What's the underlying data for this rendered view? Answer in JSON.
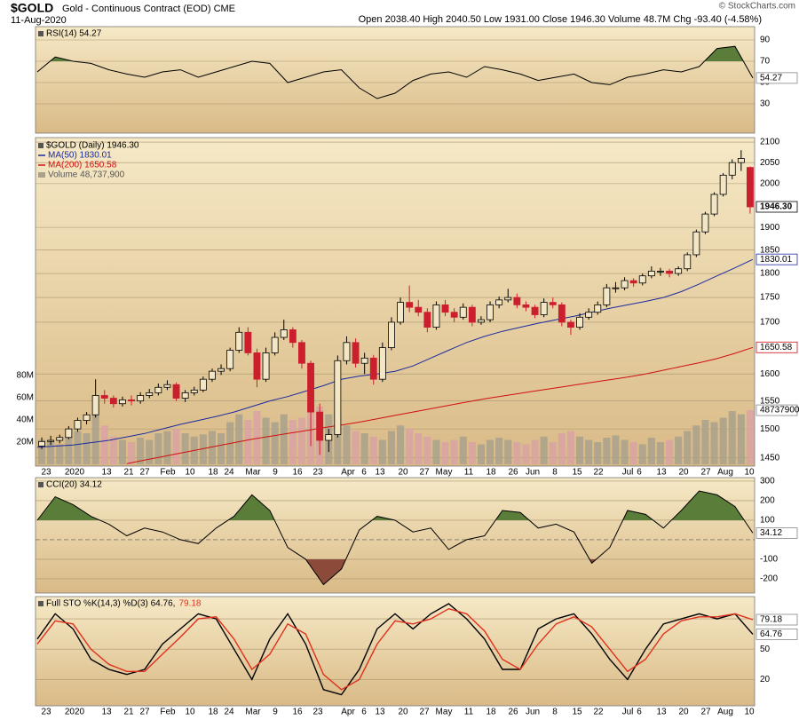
{
  "header": {
    "symbol": "$GOLD",
    "name": "Gold - Continuous Contract (EOD) CME",
    "date": "11-Aug-2020",
    "quote": "Open 2038.40 High 2040.50 Low 1931.00 Close 1946.30 Volume 48.7M Chg -93.40 (-4.58%)",
    "credit": "© StockCharts.com"
  },
  "xlabels": [
    "23",
    "2020",
    "13",
    "21",
    "27",
    "Feb",
    "10",
    "18",
    "24",
    "Mar",
    "9",
    "16",
    "23",
    "Apr",
    "6",
    "13",
    "20",
    "27",
    "May",
    "11",
    "18",
    "26",
    "Jun",
    "8",
    "15",
    "22",
    "Jul",
    "6",
    "13",
    "20",
    "27",
    "Aug",
    "10"
  ],
  "chart_data": [
    {
      "type": "line",
      "ylim": [
        2.5,
        102.5
      ],
      "yticks": [
        90,
        70,
        50,
        30
      ],
      "upper": {
        "value": 70,
        "color": "#5a7d3a"
      },
      "lower": {
        "value": 30,
        "color": "#8b4a3a"
      },
      "series": [
        {
          "name": "RSI(14) 54.27",
          "color": "#000000",
          "last_label": "54.27",
          "values": [
            60,
            74,
            70,
            68,
            62,
            58,
            55,
            60,
            62,
            55,
            60,
            65,
            70,
            68,
            50,
            55,
            60,
            62,
            45,
            35,
            40,
            52,
            58,
            60,
            55,
            65,
            62,
            58,
            52,
            55,
            58,
            50,
            48,
            55,
            58,
            62,
            60,
            65,
            82,
            84,
            54.27
          ]
        }
      ]
    },
    {
      "type": "candlestick",
      "title": "$GOLD (Daily) 1946.30",
      "log": true,
      "ylim": [
        1436,
        2111
      ],
      "yticks": [
        2100,
        2050,
        2000,
        1900,
        1850,
        1800,
        1750,
        1700,
        1600,
        1550,
        1500,
        1450
      ],
      "up_color": "#000000",
      "down_color": "#cc1f2e",
      "last_label": "1946.30",
      "candles": [
        [
          1470,
          1485,
          1465,
          1478
        ],
        [
          1478,
          1488,
          1472,
          1480
        ],
        [
          1480,
          1490,
          1475,
          1485
        ],
        [
          1485,
          1505,
          1482,
          1500
        ],
        [
          1500,
          1520,
          1495,
          1515
        ],
        [
          1515,
          1530,
          1508,
          1525
        ],
        [
          1525,
          1590,
          1520,
          1560
        ],
        [
          1560,
          1570,
          1545,
          1555
        ],
        [
          1555,
          1560,
          1538,
          1545
        ],
        [
          1545,
          1558,
          1540,
          1552
        ],
        [
          1552,
          1560,
          1542,
          1550
        ],
        [
          1550,
          1566,
          1545,
          1560
        ],
        [
          1560,
          1572,
          1555,
          1565
        ],
        [
          1565,
          1582,
          1560,
          1575
        ],
        [
          1575,
          1588,
          1570,
          1580
        ],
        [
          1580,
          1584,
          1550,
          1555
        ],
        [
          1555,
          1570,
          1548,
          1565
        ],
        [
          1565,
          1576,
          1560,
          1570
        ],
        [
          1570,
          1595,
          1566,
          1590
        ],
        [
          1590,
          1610,
          1585,
          1605
        ],
        [
          1605,
          1618,
          1598,
          1610
        ],
        [
          1610,
          1650,
          1605,
          1645
        ],
        [
          1645,
          1690,
          1640,
          1680
        ],
        [
          1680,
          1690,
          1635,
          1640
        ],
        [
          1640,
          1648,
          1575,
          1590
        ],
        [
          1590,
          1650,
          1585,
          1640
        ],
        [
          1640,
          1680,
          1635,
          1670
        ],
        [
          1670,
          1705,
          1665,
          1685
        ],
        [
          1685,
          1690,
          1650,
          1660
        ],
        [
          1660,
          1665,
          1610,
          1620
        ],
        [
          1620,
          1625,
          1470,
          1530
        ],
        [
          1530,
          1545,
          1455,
          1480
        ],
        [
          1480,
          1500,
          1460,
          1490
        ],
        [
          1490,
          1635,
          1485,
          1625
        ],
        [
          1625,
          1672,
          1618,
          1660
        ],
        [
          1660,
          1668,
          1612,
          1620
        ],
        [
          1620,
          1640,
          1600,
          1630
        ],
        [
          1630,
          1636,
          1580,
          1590
        ],
        [
          1590,
          1660,
          1585,
          1650
        ],
        [
          1650,
          1710,
          1645,
          1700
        ],
        [
          1700,
          1750,
          1695,
          1740
        ],
        [
          1740,
          1775,
          1720,
          1730
        ],
        [
          1730,
          1745,
          1712,
          1720
        ],
        [
          1720,
          1728,
          1680,
          1690
        ],
        [
          1690,
          1742,
          1685,
          1735
        ],
        [
          1735,
          1745,
          1712,
          1720
        ],
        [
          1720,
          1728,
          1700,
          1710
        ],
        [
          1710,
          1738,
          1705,
          1730
        ],
        [
          1730,
          1735,
          1692,
          1700
        ],
        [
          1700,
          1712,
          1695,
          1705
        ],
        [
          1705,
          1742,
          1700,
          1735
        ],
        [
          1735,
          1752,
          1728,
          1745
        ],
        [
          1745,
          1768,
          1740,
          1750
        ],
        [
          1750,
          1758,
          1728,
          1735
        ],
        [
          1735,
          1742,
          1722,
          1730
        ],
        [
          1730,
          1735,
          1708,
          1715
        ],
        [
          1715,
          1748,
          1710,
          1740
        ],
        [
          1740,
          1750,
          1728,
          1735
        ],
        [
          1735,
          1740,
          1692,
          1700
        ],
        [
          1700,
          1705,
          1675,
          1690
        ],
        [
          1690,
          1718,
          1685,
          1710
        ],
        [
          1710,
          1728,
          1705,
          1720
        ],
        [
          1720,
          1742,
          1715,
          1735
        ],
        [
          1735,
          1778,
          1730,
          1770
        ],
        [
          1770,
          1782,
          1760,
          1770
        ],
        [
          1770,
          1792,
          1765,
          1785
        ],
        [
          1785,
          1790,
          1772,
          1780
        ],
        [
          1780,
          1800,
          1775,
          1795
        ],
        [
          1795,
          1815,
          1790,
          1805
        ],
        [
          1805,
          1812,
          1795,
          1805
        ],
        [
          1805,
          1810,
          1792,
          1800
        ],
        [
          1800,
          1815,
          1795,
          1810
        ],
        [
          1810,
          1845,
          1805,
          1840
        ],
        [
          1840,
          1895,
          1835,
          1890
        ],
        [
          1890,
          1935,
          1885,
          1930
        ],
        [
          1930,
          1980,
          1925,
          1975
        ],
        [
          1975,
          2025,
          1970,
          2020
        ],
        [
          2020,
          2058,
          2010,
          2050
        ],
        [
          2050,
          2080,
          2030,
          2060
        ],
        [
          2038.4,
          2040.5,
          1931,
          1946.3
        ]
      ],
      "series": [
        {
          "name": "MA(50) 1830.01",
          "color": "#1c2aa0",
          "last_label": "1830.01",
          "values": [
            1468,
            1470,
            1472,
            1476,
            1480,
            1486,
            1492,
            1500,
            1508,
            1515,
            1522,
            1530,
            1540,
            1550,
            1558,
            1568,
            1578,
            1590,
            1596,
            1600,
            1605,
            1615,
            1630,
            1645,
            1660,
            1672,
            1682,
            1690,
            1698,
            1705,
            1712,
            1720,
            1728,
            1735,
            1742,
            1750,
            1762,
            1778,
            1795,
            1812,
            1830.01
          ]
        },
        {
          "name": "MA(200) 1650.58",
          "color": "#d01010",
          "last_label": "1650.58",
          "values": [
            null,
            null,
            null,
            null,
            null,
            1440,
            1446,
            1452,
            1458,
            1464,
            1470,
            1476,
            1482,
            1487,
            1492,
            1497,
            1502,
            1507,
            1512,
            1518,
            1524,
            1530,
            1536,
            1542,
            1548,
            1554,
            1559,
            1564,
            1569,
            1574,
            1579,
            1584,
            1589,
            1594,
            1600,
            1607,
            1614,
            1621,
            1629,
            1639,
            1650.58
          ]
        }
      ],
      "volume": {
        "name": "Volume 48,737,900",
        "up_color": "#a9a18c",
        "down_color": "#d9a3a3",
        "last_label": "48737900",
        "ylim": [
          0,
          100000000
        ],
        "yticks": [
          {
            "value": 80000000,
            "label": "80M"
          },
          {
            "value": 60000000,
            "label": "60M"
          },
          {
            "value": 40000000,
            "label": "40M"
          },
          {
            "value": 20000000,
            "label": "20M"
          }
        ],
        "values": [
          22000000,
          20000000,
          18000000,
          25000000,
          30000000,
          28000000,
          45000000,
          35000000,
          25000000,
          22000000,
          20000000,
          24000000,
          22000000,
          28000000,
          30000000,
          32000000,
          28000000,
          25000000,
          27000000,
          30000000,
          28000000,
          38000000,
          45000000,
          40000000,
          48000000,
          42000000,
          38000000,
          45000000,
          40000000,
          42000000,
          55000000,
          52000000,
          45000000,
          48000000,
          35000000,
          30000000,
          28000000,
          25000000,
          22000000,
          30000000,
          35000000,
          32000000,
          28000000,
          25000000,
          22000000,
          20000000,
          22000000,
          25000000,
          20000000,
          18000000,
          22000000,
          24000000,
          22000000,
          20000000,
          18000000,
          22000000,
          25000000,
          20000000,
          28000000,
          30000000,
          25000000,
          22000000,
          20000000,
          24000000,
          26000000,
          22000000,
          20000000,
          18000000,
          24000000,
          20000000,
          22000000,
          25000000,
          30000000,
          35000000,
          40000000,
          38000000,
          42000000,
          48000000,
          45000000,
          48737900
        ]
      }
    },
    {
      "type": "line",
      "ylim": [
        -273,
        318
      ],
      "yticks": [
        300,
        200,
        100,
        -100,
        -200
      ],
      "upper": {
        "value": 100,
        "color": "#5a7d3a"
      },
      "lower": {
        "value": -100,
        "color": "#8b4a3a"
      },
      "series": [
        {
          "name": "CCI(20) 34.12",
          "color": "#000000",
          "last_label": "34.12",
          "values": [
            100,
            220,
            180,
            120,
            80,
            20,
            60,
            40,
            0,
            -20,
            60,
            120,
            230,
            150,
            -40,
            -100,
            -230,
            -150,
            50,
            120,
            100,
            40,
            60,
            -50,
            0,
            20,
            150,
            140,
            60,
            80,
            40,
            -120,
            -40,
            150,
            130,
            60,
            150,
            250,
            230,
            170,
            34.12
          ]
        }
      ]
    },
    {
      "type": "line",
      "ylim": [
        -6,
        102
      ],
      "yticks": [
        80,
        50,
        20
      ],
      "series": [
        {
          "name": "Full STO %K(14,3) %D(3) 64.76,",
          "color": "#000000",
          "last_label": "64.76",
          "values": [
            60,
            85,
            70,
            40,
            30,
            25,
            30,
            55,
            70,
            85,
            80,
            50,
            20,
            60,
            85,
            55,
            10,
            5,
            30,
            70,
            85,
            70,
            85,
            95,
            80,
            60,
            30,
            30,
            70,
            80,
            85,
            65,
            40,
            20,
            50,
            75,
            80,
            85,
            80,
            85,
            64.76
          ]
        },
        {
          "name": "79.18",
          "color": "#e0301e",
          "last_label": "79.18",
          "values": [
            55,
            78,
            75,
            50,
            35,
            28,
            28,
            45,
            62,
            80,
            82,
            60,
            30,
            45,
            75,
            65,
            25,
            10,
            20,
            55,
            78,
            75,
            80,
            90,
            85,
            68,
            40,
            30,
            55,
            75,
            82,
            72,
            50,
            28,
            40,
            65,
            78,
            82,
            82,
            85,
            79.18
          ]
        }
      ]
    }
  ]
}
